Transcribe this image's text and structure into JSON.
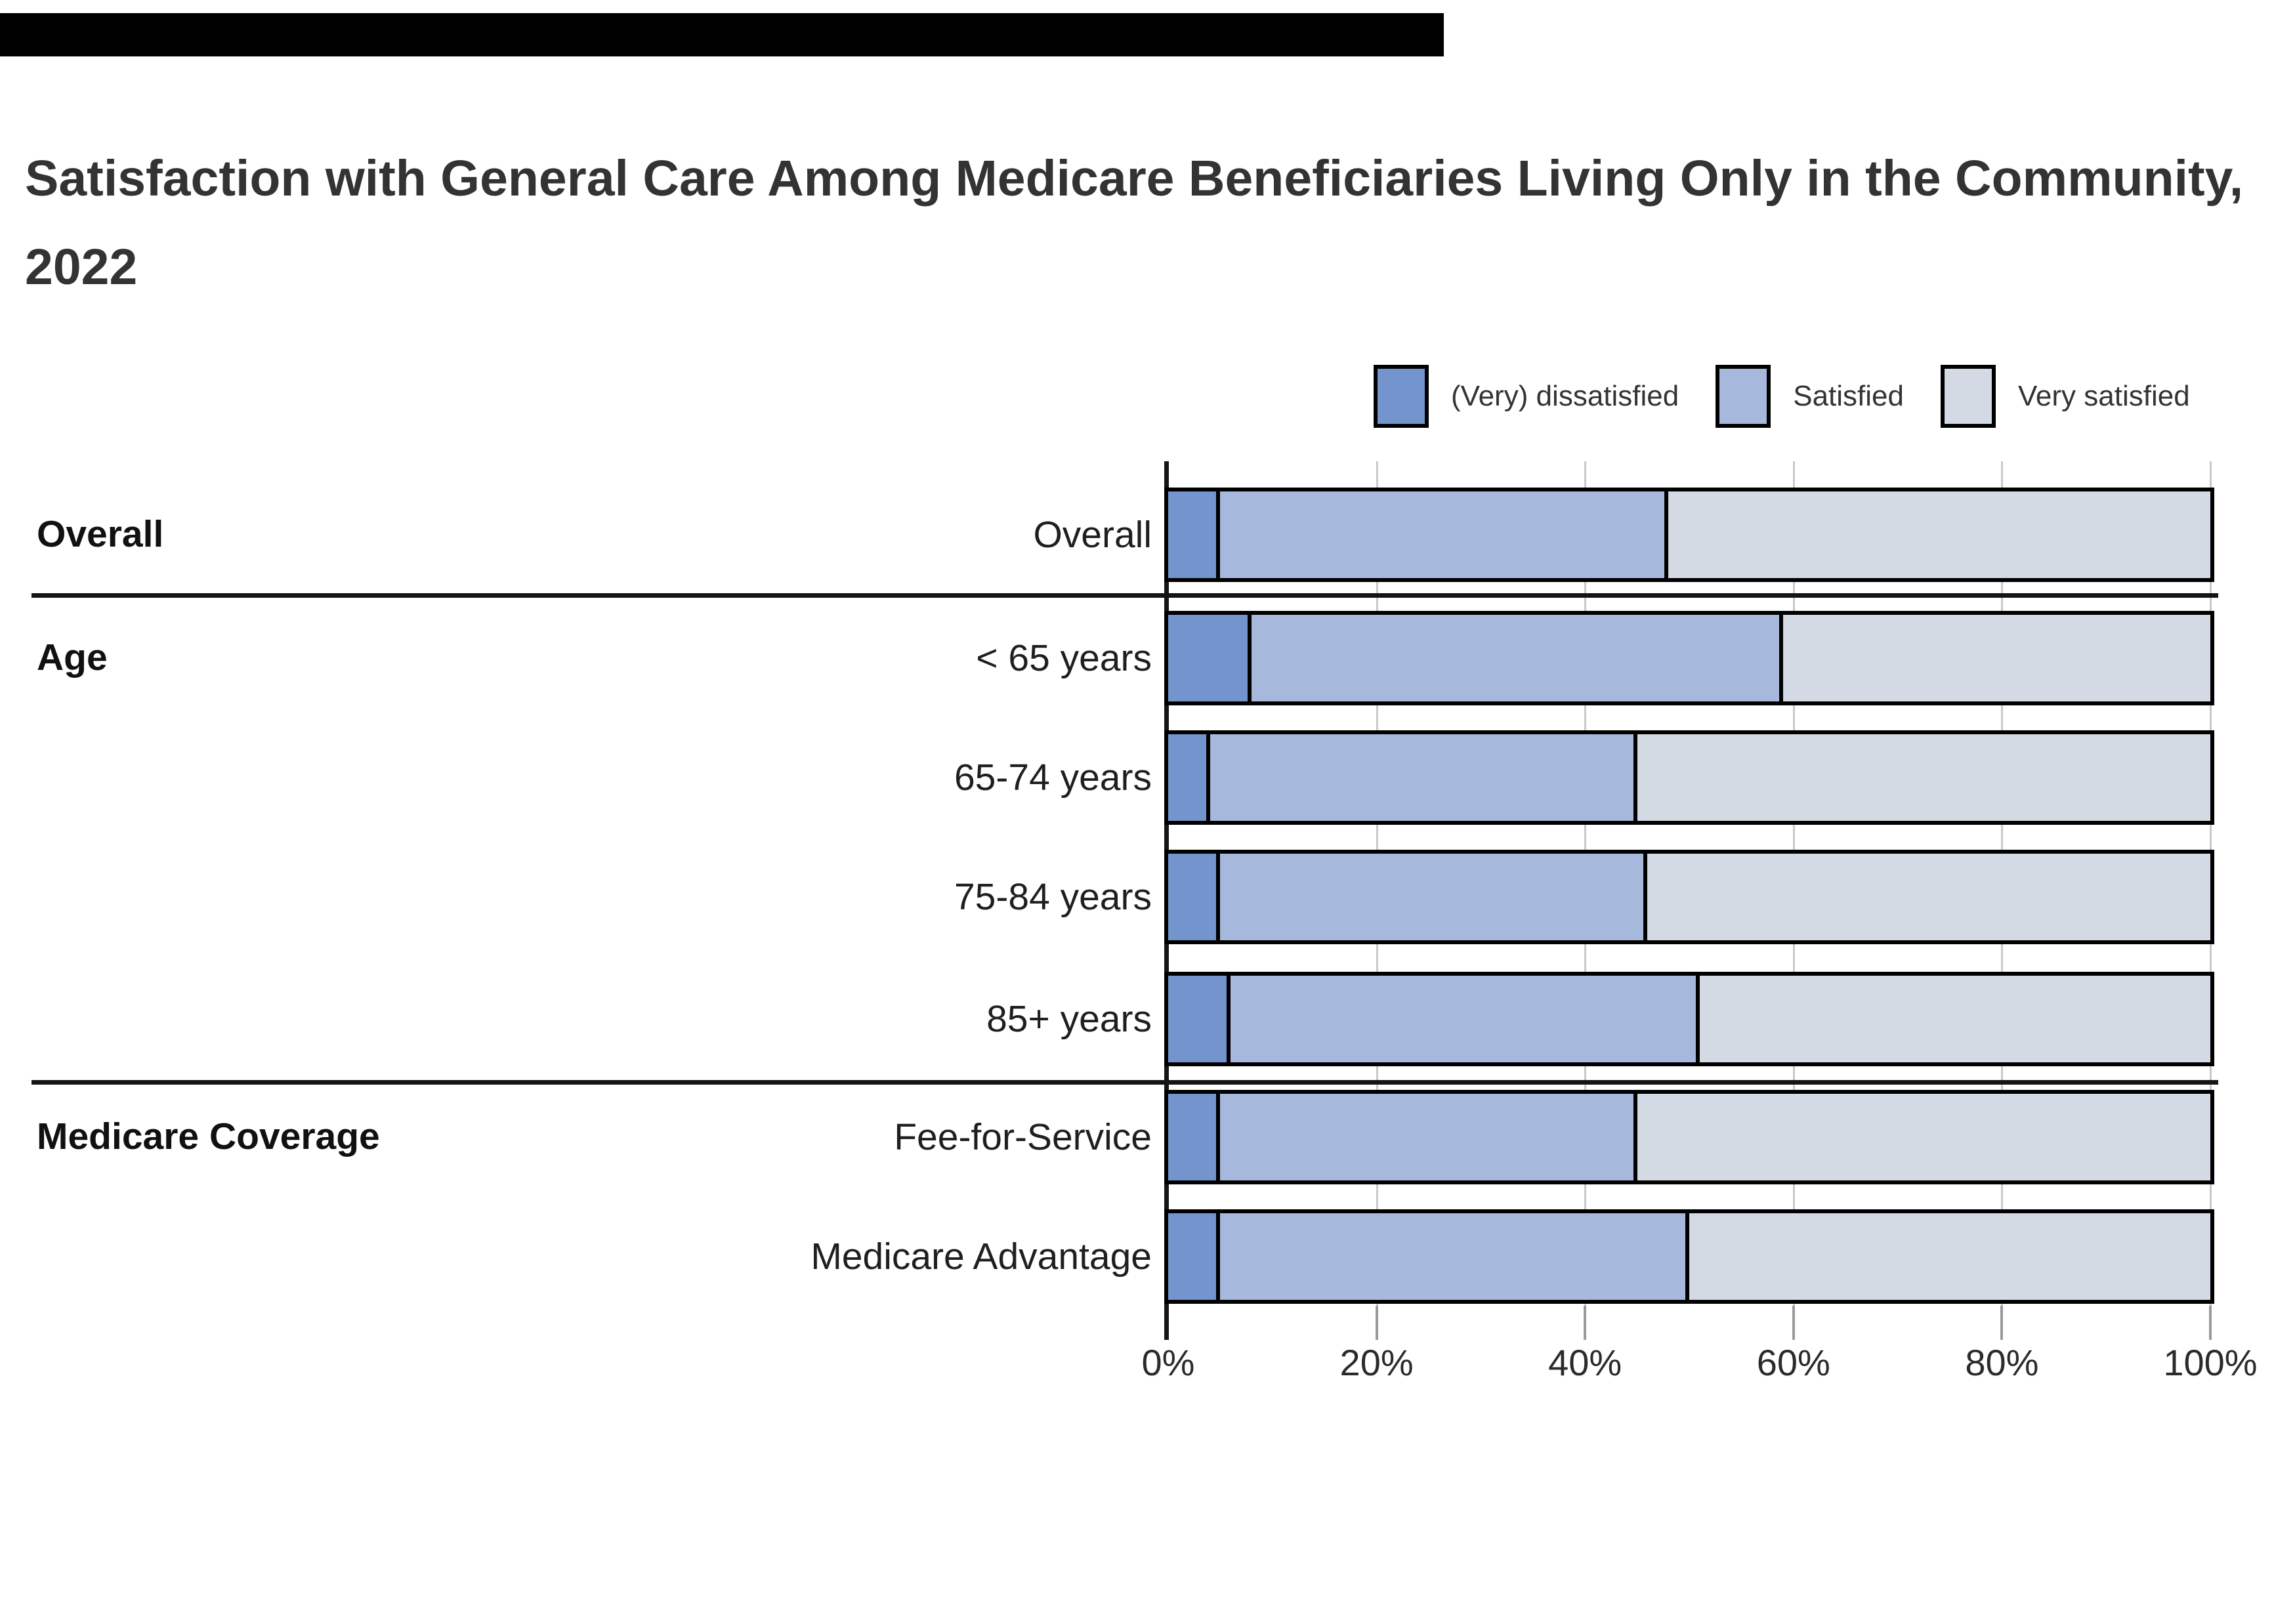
{
  "top_bar_color": "#000000",
  "title": "Satisfaction with General Care Among Medicare Beneficiaries Living Only in the Community, 2022",
  "legend": {
    "items": [
      {
        "label": "(Very) dissatisfied",
        "color": "#7494CD"
      },
      {
        "label": "Satisfied",
        "color": "#A6B9DC"
      },
      {
        "label": "Very satisfied",
        "color": "#D4DAE4"
      }
    ]
  },
  "chart_data": {
    "type": "bar",
    "stacked": true,
    "orientation": "horizontal",
    "title": "Satisfaction with General Care Among Medicare Beneficiaries Living Only in the Community, 2022",
    "series_names": [
      "(Very) dissatisfied",
      "Satisfied",
      "Very satisfied"
    ],
    "colors": [
      "#7494CD",
      "#A6B9DC",
      "#D4DAE4"
    ],
    "groups": [
      {
        "group": "Overall",
        "rows": [
          {
            "label": "Overall",
            "values": [
              5,
              43,
              52
            ]
          }
        ]
      },
      {
        "group": "Age",
        "rows": [
          {
            "label": "< 65 years",
            "values": [
              8,
              51,
              41
            ]
          },
          {
            "label": "65-74 years",
            "values": [
              4,
              41,
              55
            ]
          },
          {
            "label": "75-84 years",
            "values": [
              5,
              41,
              54
            ]
          },
          {
            "label": "85+ years",
            "values": [
              6,
              45,
              49
            ]
          }
        ]
      },
      {
        "group": "Medicare Coverage",
        "rows": [
          {
            "label": "Fee-for-Service",
            "values": [
              5,
              40,
              55
            ]
          },
          {
            "label": "Medicare Advantage",
            "values": [
              5,
              45,
              50
            ]
          }
        ]
      }
    ],
    "xlabel": "",
    "ylabel": "",
    "xlim": [
      0,
      100
    ],
    "x_ticks": [
      "0%",
      "20%",
      "40%",
      "60%",
      "80%",
      "100%"
    ],
    "grid": true,
    "legend_position": "top-right"
  }
}
